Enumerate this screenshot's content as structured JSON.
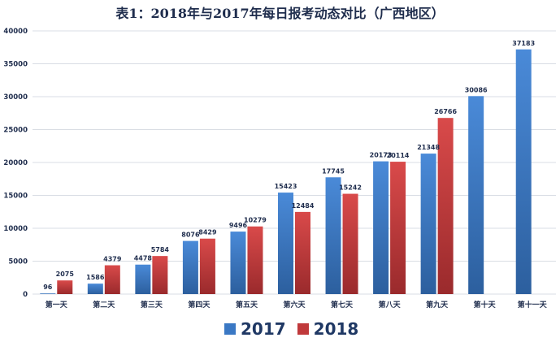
{
  "chart_data": {
    "type": "bar",
    "title": "表1：2018年与2017年每日报考动态对比（广西地区）",
    "categories": [
      "第一天",
      "第二天",
      "第三天",
      "第四天",
      "第五天",
      "第六天",
      "第七天",
      "第八天",
      "第九天",
      "第十天",
      "第十一天"
    ],
    "series": [
      {
        "name": "2017",
        "color": "#3a78c4",
        "values": [
          96,
          1586,
          4478,
          8076,
          9496,
          15423,
          17745,
          20173,
          21348,
          30086,
          37183
        ]
      },
      {
        "name": "2018",
        "color": "#c0393b",
        "values": [
          2075,
          4379,
          5784,
          8429,
          10279,
          12484,
          15242,
          20114,
          26766,
          null,
          null
        ]
      }
    ],
    "ylim": [
      0,
      40000
    ],
    "yticks": [
      0,
      5000,
      10000,
      15000,
      20000,
      25000,
      30000,
      35000,
      40000
    ],
    "grid": true,
    "legend_position": "bottom"
  }
}
